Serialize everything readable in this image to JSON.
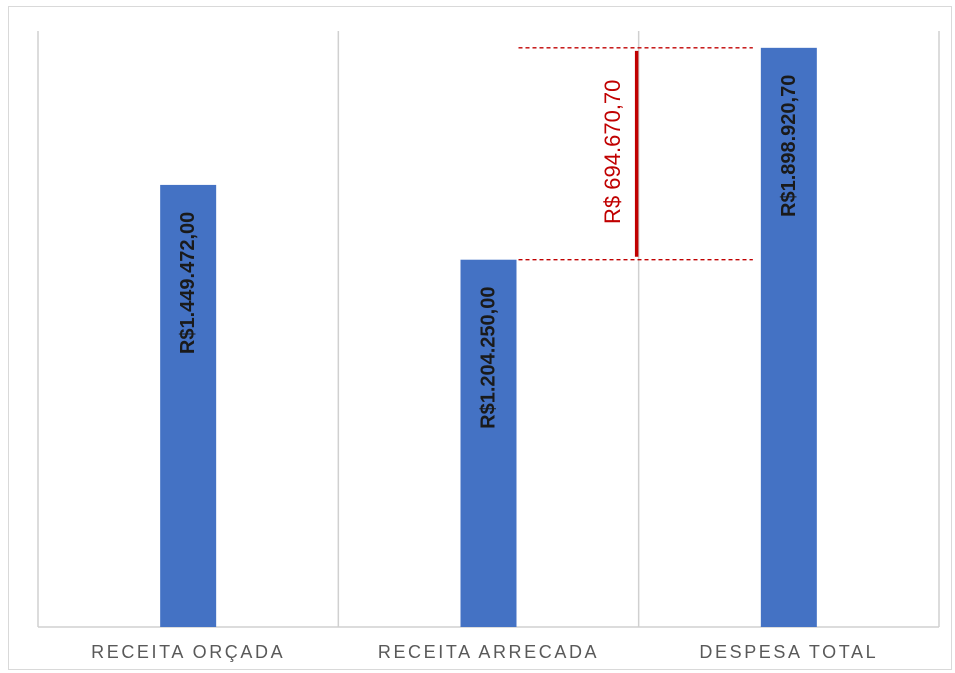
{
  "colors": {
    "bar": "#4472c4",
    "gridline": "#d0d0d0",
    "annotation": "#c00000",
    "category_text": "#595959",
    "value_text": "#1a1a1a"
  },
  "chart_data": {
    "type": "bar",
    "categories": [
      "RECEITA ORÇADA",
      "RECEITA ARRECADA",
      "DESPESA TOTAL"
    ],
    "values": [
      1449472.0,
      1204250.0,
      1898920.7
    ],
    "value_labels": [
      "R$1.449.472,00",
      "R$1.204.250,00",
      "R$1.898.920,70"
    ],
    "ylim": [
      0,
      2000000
    ],
    "grid": "vertical separators between categories",
    "legend": "none",
    "title": "",
    "xlabel": "",
    "ylabel": "",
    "annotation": {
      "label": "R$ 694.670,70",
      "value": 694670.7,
      "from_value": 1204250.0,
      "to_value": 1898920.7
    }
  }
}
